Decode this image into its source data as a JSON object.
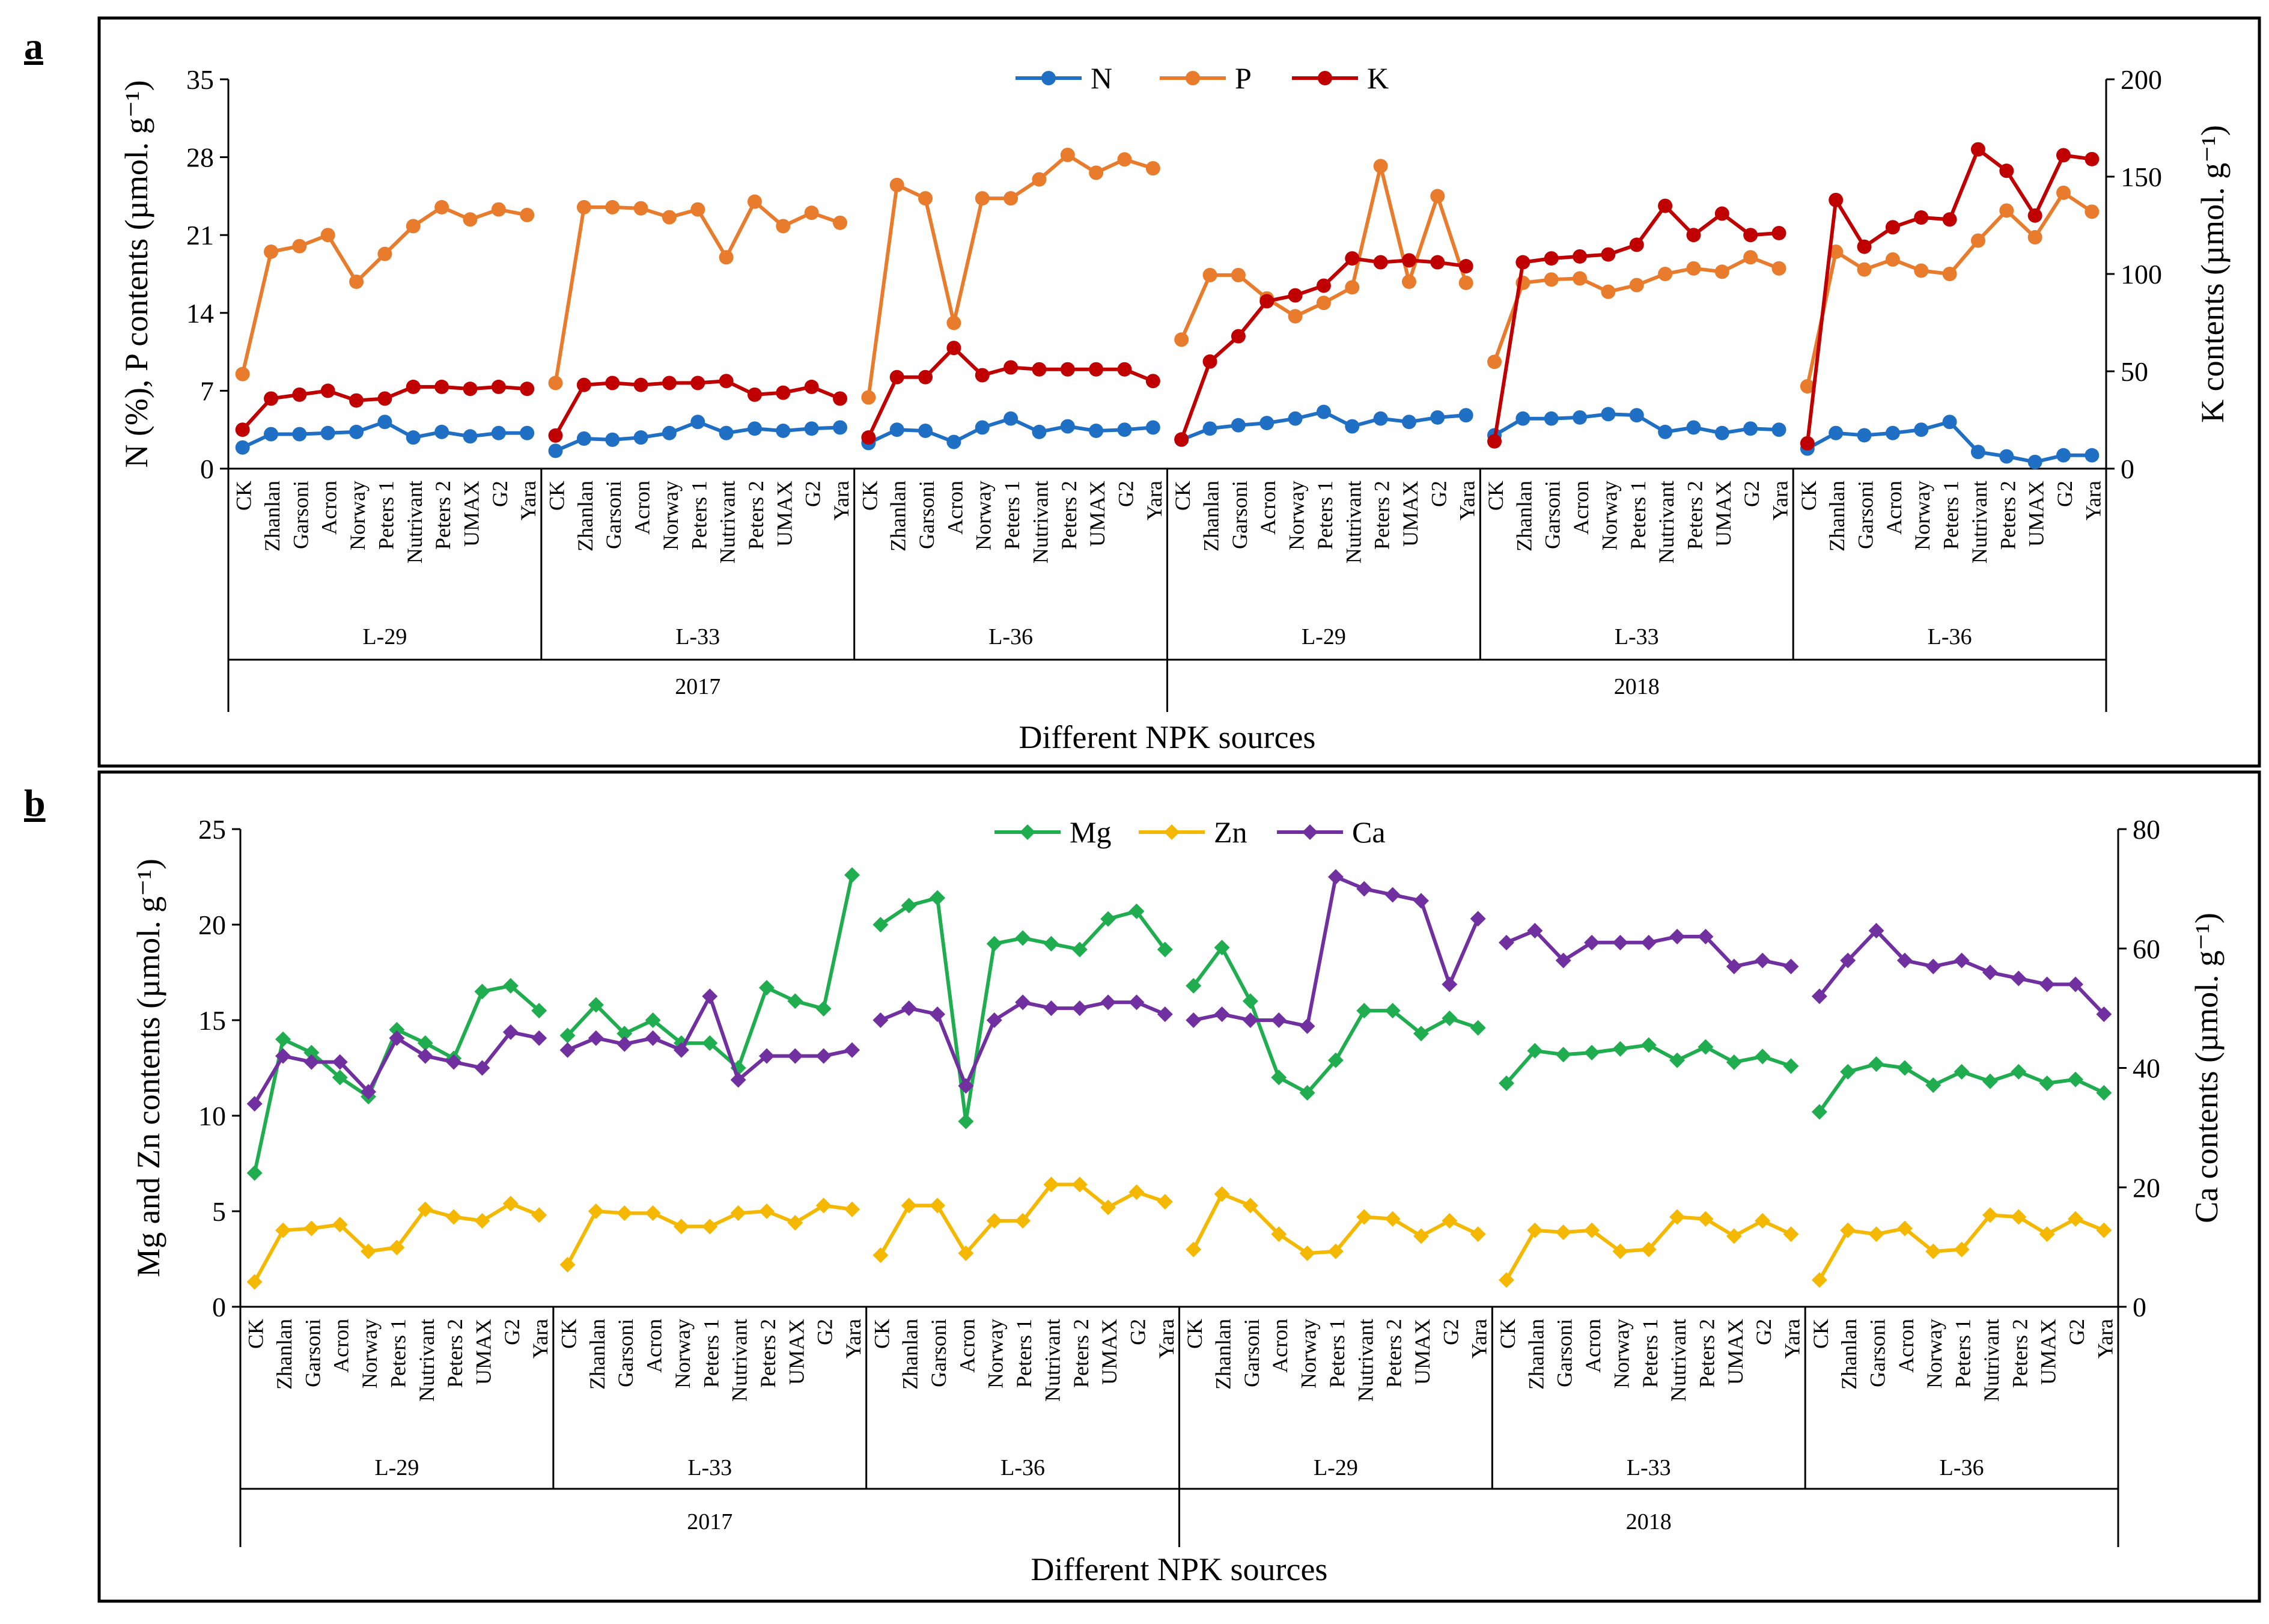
{
  "panel_labels": [
    "a",
    "b"
  ],
  "categories": [
    "CK",
    "Zhanlan",
    "Garsoni",
    "Acron",
    "Norway",
    "Peters 1",
    "Nutrivant",
    "Peters 2",
    "UMAX",
    "G2",
    "Yara"
  ],
  "group_labels": [
    "L-29",
    "L-33",
    "L-36",
    "L-29",
    "L-33",
    "L-36"
  ],
  "year_labels": [
    "2017",
    "2018"
  ],
  "colors": {
    "N": "#1f6fc5",
    "P": "#e87b2c",
    "K": "#c00000",
    "Mg": "#1fad4f",
    "Zn": "#f5b800",
    "Ca": "#7030a0"
  },
  "chart_data": [
    {
      "type": "line",
      "panel": "a",
      "xlabel": "Different NPK sources",
      "ylabel_left": "N (%), P contents (µmol. g⁻¹)",
      "ylabel_right": "K contents (µmol. g⁻¹)",
      "ylim_left": [
        0,
        35
      ],
      "ylim_right": [
        0,
        200
      ],
      "yticks_left": [
        "0",
        "7",
        "14",
        "21",
        "28",
        "35"
      ],
      "yticks_right": [
        "0",
        "50",
        "100",
        "150",
        "200"
      ],
      "legend": [
        "N",
        "P",
        "K"
      ],
      "series": [
        {
          "name": "N",
          "axis": "left",
          "values": [
            [
              1.9,
              3.1,
              3.1,
              3.2,
              3.3,
              4.2,
              2.8,
              3.3,
              2.9,
              3.2,
              3.2
            ],
            [
              1.6,
              2.7,
              2.6,
              2.8,
              3.2,
              4.2,
              3.2,
              3.6,
              3.4,
              3.6,
              3.7
            ],
            [
              2.3,
              3.5,
              3.4,
              2.4,
              3.7,
              4.5,
              3.3,
              3.8,
              3.4,
              3.5,
              3.7
            ],
            [
              2.6,
              3.6,
              3.9,
              4.1,
              4.5,
              5.1,
              3.8,
              4.5,
              4.2,
              4.6,
              4.8
            ],
            [
              3.0,
              4.5,
              4.5,
              4.6,
              4.9,
              4.8,
              3.3,
              3.7,
              3.2,
              3.6,
              3.5
            ],
            [
              1.8,
              3.2,
              3.0,
              3.2,
              3.5,
              4.2,
              1.5,
              1.1,
              0.6,
              1.2,
              1.2
            ]
          ]
        },
        {
          "name": "P",
          "axis": "left",
          "values": [
            [
              8.5,
              19.5,
              20.0,
              21.0,
              16.8,
              19.3,
              21.8,
              23.5,
              22.4,
              23.3,
              22.8
            ],
            [
              7.7,
              23.5,
              23.5,
              23.4,
              22.6,
              23.3,
              19.0,
              24.0,
              21.8,
              23.0,
              22.1
            ],
            [
              6.4,
              25.5,
              24.3,
              13.1,
              24.3,
              24.3,
              26.0,
              28.2,
              26.6,
              27.8,
              27.0
            ],
            [
              11.6,
              17.4,
              17.4,
              15.3,
              13.7,
              14.9,
              16.3,
              27.2,
              16.8,
              24.5,
              16.7
            ],
            [
              9.6,
              16.7,
              17.0,
              17.1,
              15.9,
              16.5,
              17.5,
              18.0,
              17.7,
              19.0,
              18.0
            ],
            [
              7.4,
              19.5,
              17.9,
              18.8,
              17.8,
              17.5,
              20.5,
              23.2,
              20.8,
              24.8,
              23.1
            ]
          ]
        },
        {
          "name": "K",
          "axis": "right",
          "values": [
            [
              20,
              36,
              38,
              40,
              35,
              36,
              42,
              42,
              41,
              42,
              41
            ],
            [
              17,
              43,
              44,
              43,
              44,
              44,
              45,
              38,
              39,
              42,
              36
            ],
            [
              16,
              47,
              47,
              62,
              48,
              52,
              51,
              51,
              51,
              51,
              45
            ],
            [
              15,
              55,
              68,
              86,
              89,
              94,
              108,
              106,
              107,
              106,
              104
            ],
            [
              14,
              106,
              108,
              109,
              110,
              115,
              135,
              120,
              131,
              120,
              121
            ],
            [
              13,
              138,
              114,
              124,
              129,
              128,
              164,
              153,
              130,
              161,
              159
            ]
          ]
        }
      ]
    },
    {
      "type": "line",
      "panel": "b",
      "xlabel": "Different NPK sources",
      "ylabel_left": "Mg and Zn contents (µmol. g⁻¹)",
      "ylabel_right": "Ca contents (µmol. g⁻¹)",
      "ylim_left": [
        0,
        25
      ],
      "ylim_right": [
        0,
        80
      ],
      "yticks_left": [
        "0",
        "5",
        "10",
        "15",
        "20",
        "25"
      ],
      "yticks_right": [
        "0",
        "20",
        "40",
        "60",
        "80"
      ],
      "legend": [
        "Mg",
        "Zn",
        "Ca"
      ],
      "series": [
        {
          "name": "Mg",
          "axis": "left",
          "values": [
            [
              7.0,
              14.0,
              13.3,
              12.0,
              11.0,
              14.5,
              13.8,
              13.0,
              16.5,
              16.8,
              15.5
            ],
            [
              14.2,
              15.8,
              14.3,
              15.0,
              13.8,
              13.8,
              12.5,
              16.7,
              16.0,
              15.6,
              22.6
            ],
            [
              20.0,
              21.0,
              21.4,
              9.7,
              19.0,
              19.3,
              19.0,
              18.7,
              20.3,
              20.7,
              18.7
            ],
            [
              16.8,
              18.8,
              16.0,
              12.0,
              11.2,
              12.9,
              15.5,
              15.5,
              14.3,
              15.1,
              14.6
            ],
            [
              11.7,
              13.4,
              13.2,
              13.3,
              13.5,
              13.7,
              12.9,
              13.6,
              12.8,
              13.1,
              12.6
            ],
            [
              10.2,
              12.3,
              12.7,
              12.5,
              11.6,
              12.3,
              11.8,
              12.3,
              11.7,
              11.9,
              11.2
            ]
          ]
        },
        {
          "name": "Zn",
          "axis": "left",
          "values": [
            [
              1.3,
              4.0,
              4.1,
              4.3,
              2.9,
              3.1,
              5.1,
              4.7,
              4.5,
              5.4,
              4.8
            ],
            [
              2.2,
              5.0,
              4.9,
              4.9,
              4.2,
              4.2,
              4.9,
              5.0,
              4.4,
              5.3,
              5.1
            ],
            [
              2.7,
              5.3,
              5.3,
              2.8,
              4.5,
              4.5,
              6.4,
              6.4,
              5.2,
              6.0,
              5.5
            ],
            [
              3.0,
              5.9,
              5.3,
              3.8,
              2.8,
              2.9,
              4.7,
              4.6,
              3.7,
              4.5,
              3.8
            ],
            [
              1.4,
              4.0,
              3.9,
              4.0,
              2.9,
              3.0,
              4.7,
              4.6,
              3.7,
              4.5,
              3.8
            ],
            [
              1.4,
              4.0,
              3.8,
              4.1,
              2.9,
              3.0,
              4.8,
              4.7,
              3.8,
              4.6,
              4.0
            ]
          ]
        },
        {
          "name": "Ca",
          "axis": "right",
          "values": [
            [
              34,
              42,
              41,
              41,
              36,
              45,
              42,
              41,
              40,
              46,
              45
            ],
            [
              43,
              45,
              44,
              45,
              43,
              52,
              38,
              42,
              42,
              42,
              43
            ],
            [
              48,
              50,
              49,
              37,
              48,
              51,
              50,
              50,
              51,
              51,
              49
            ],
            [
              48,
              49,
              48,
              48,
              47,
              72,
              70,
              69,
              68,
              54,
              65
            ],
            [
              61,
              63,
              58,
              61,
              61,
              61,
              62,
              62,
              57,
              58,
              57
            ],
            [
              52,
              58,
              63,
              58,
              57,
              58,
              56,
              55,
              54,
              54,
              49
            ]
          ]
        }
      ]
    }
  ]
}
